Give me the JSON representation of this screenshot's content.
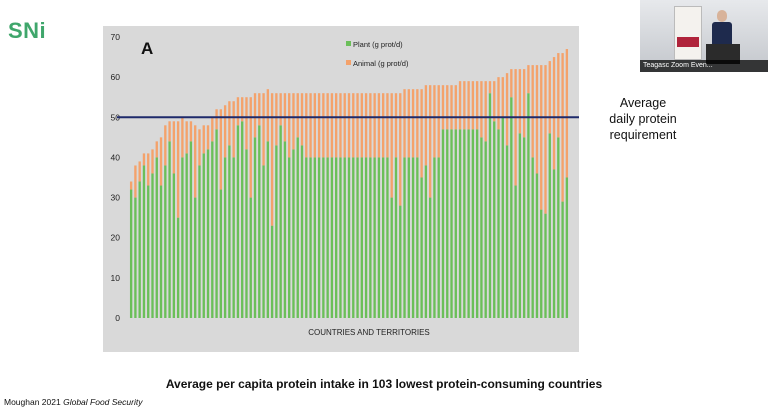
{
  "logo": {
    "text": "SNi"
  },
  "caption": "Average per capita protein intake in 103 lowest protein-consuming countries",
  "citation": {
    "authors": "Moughan 2021",
    "journal": "Global Food Security"
  },
  "annotation": {
    "line1": "Average",
    "line2": "daily protein",
    "line3": "requirement"
  },
  "video": {
    "label": "Teagasc Zoom Even..."
  },
  "colors": {
    "plant": "#6bbf59",
    "animal": "#f4a26b",
    "requirement": "#1f2a6b",
    "panel": "#d9d9d9"
  },
  "chart_data": {
    "type": "bar",
    "stacked": true,
    "panel_label": "A",
    "xlabel": "COUNTRIES AND TERRITORIES",
    "ylim": [
      0,
      70
    ],
    "yticks": [
      0,
      10,
      20,
      30,
      40,
      50,
      60,
      70
    ],
    "reference_line": {
      "value": 50
    },
    "legend_position": "top-center",
    "series": [
      {
        "name": "Plant (g prot/d)",
        "color": "#6bbf59",
        "values": [
          32,
          30,
          34,
          38,
          33,
          36,
          40,
          33,
          38,
          44,
          36,
          25,
          40,
          41,
          44,
          30,
          38,
          41,
          42,
          44,
          47,
          32,
          40,
          43,
          40,
          48,
          49,
          42,
          30,
          45,
          48,
          38,
          44,
          23,
          43,
          48,
          44,
          40,
          42,
          45,
          43,
          40,
          40,
          40,
          40,
          40,
          40,
          40,
          40,
          40,
          40,
          40,
          40,
          40,
          40,
          40,
          40,
          40,
          40,
          40,
          40,
          30,
          40,
          28,
          40,
          40,
          40,
          40,
          35,
          38,
          30,
          40,
          40,
          47,
          47,
          47,
          47,
          47,
          47,
          47,
          47,
          47,
          45,
          44,
          56,
          49,
          47,
          50,
          43,
          55,
          33,
          46,
          45,
          56,
          40,
          36,
          27,
          26,
          46,
          37,
          45,
          29,
          35
        ]
      },
      {
        "name": "Animal (g prot/d)",
        "color": "#f4a26b",
        "values": [
          2,
          8,
          5,
          3,
          8,
          6,
          4,
          12,
          10,
          5,
          13,
          24,
          10,
          8,
          5,
          18,
          9,
          7,
          6,
          6,
          5,
          20,
          13,
          11,
          14,
          7,
          6,
          13,
          25,
          11,
          8,
          18,
          13,
          33,
          13,
          8,
          12,
          16,
          14,
          11,
          13,
          16,
          16,
          16,
          16,
          16,
          16,
          16,
          16,
          16,
          16,
          16,
          16,
          16,
          16,
          16,
          16,
          16,
          16,
          16,
          16,
          26,
          16,
          28,
          17,
          17,
          17,
          17,
          22,
          20,
          28,
          18,
          18,
          11,
          11,
          11,
          11,
          12,
          12,
          12,
          12,
          12,
          14,
          15,
          3,
          10,
          13,
          10,
          18,
          7,
          29,
          16,
          17,
          7,
          23,
          27,
          36,
          37,
          18,
          28,
          21,
          37,
          32
        ]
      }
    ]
  }
}
